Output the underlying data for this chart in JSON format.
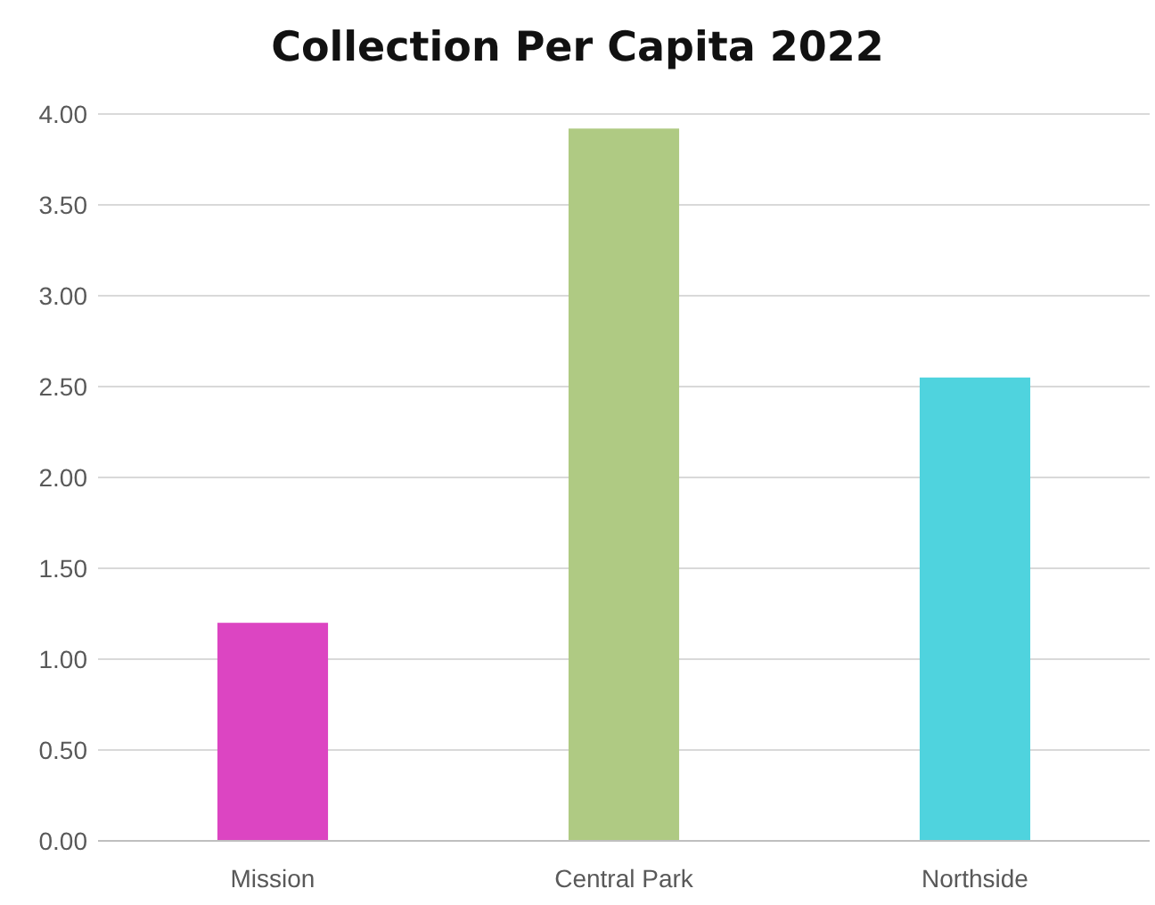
{
  "chart_data": {
    "type": "bar",
    "title": "Collection Per Capita 2022",
    "categories": [
      "Mission",
      "Central Park",
      "Northside"
    ],
    "values": [
      1.2,
      3.92,
      2.55
    ],
    "colors": [
      "#dc45c2",
      "#afca83",
      "#4fd3de"
    ],
    "ylim": [
      0,
      4
    ],
    "yticks": [
      {
        "value": 0,
        "label": "0.00"
      },
      {
        "value": 0.5,
        "label": "0.50"
      },
      {
        "value": 1,
        "label": "1.00"
      },
      {
        "value": 1.5,
        "label": "1.50"
      },
      {
        "value": 2,
        "label": "2.00"
      },
      {
        "value": 2.5,
        "label": "2.50"
      },
      {
        "value": 3,
        "label": "3.00"
      },
      {
        "value": 3.5,
        "label": "3.50"
      },
      {
        "value": 4,
        "label": "4.00"
      }
    ],
    "grid": "y"
  }
}
